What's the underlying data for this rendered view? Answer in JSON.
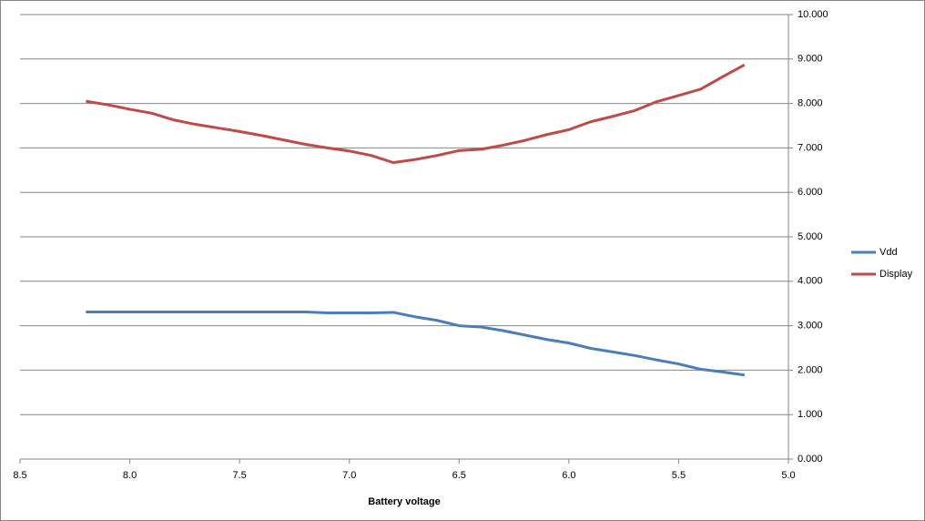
{
  "chart_data": {
    "type": "line",
    "x_label": "Battery voltage",
    "x": [
      8.2,
      8.1,
      8.0,
      7.9,
      7.8,
      7.7,
      7.6,
      7.5,
      7.4,
      7.3,
      7.2,
      7.1,
      7.0,
      6.9,
      6.8,
      6.7,
      6.6,
      6.5,
      6.4,
      6.3,
      6.2,
      6.1,
      6.0,
      5.9,
      5.8,
      5.7,
      5.6,
      5.5,
      5.4,
      5.3,
      5.2
    ],
    "series": [
      {
        "name": "Vdd",
        "color": "#4a7ebb",
        "values": [
          3.31,
          3.31,
          3.31,
          3.31,
          3.31,
          3.31,
          3.31,
          3.31,
          3.31,
          3.31,
          3.31,
          3.29,
          3.29,
          3.29,
          3.3,
          3.2,
          3.12,
          3.0,
          2.97,
          2.89,
          2.79,
          2.69,
          2.61,
          2.49,
          2.41,
          2.33,
          2.23,
          2.14,
          2.02,
          1.96,
          1.89
        ]
      },
      {
        "name": "Display",
        "color": "#be4b48",
        "values": [
          8.05,
          7.97,
          7.87,
          7.78,
          7.63,
          7.53,
          7.45,
          7.37,
          7.28,
          7.18,
          7.08,
          7.0,
          6.93,
          6.83,
          6.67,
          6.74,
          6.83,
          6.94,
          6.97,
          7.06,
          7.17,
          7.3,
          7.41,
          7.59,
          7.71,
          7.84,
          8.04,
          8.18,
          8.32,
          8.6,
          8.87
        ]
      }
    ],
    "xlim": [
      8.5,
      5.0
    ],
    "xticks": [
      8.5,
      {
        "value": 8,
        "label": "8.0"
      },
      7.5,
      {
        "value": 7,
        "label": "7.0"
      },
      6.5,
      {
        "value": 6,
        "label": "6.0"
      },
      5.5,
      {
        "value": 5,
        "label": "5.0"
      }
    ],
    "ylim": [
      0,
      10
    ],
    "yticks": [
      {
        "value": 0,
        "label": "0.000"
      },
      {
        "value": 1,
        "label": "1.000"
      },
      {
        "value": 2,
        "label": "2.000"
      },
      {
        "value": 3,
        "label": "3.000"
      },
      {
        "value": 4,
        "label": "4.000"
      },
      {
        "value": 5,
        "label": "5.000"
      },
      {
        "value": 6,
        "label": "6.000"
      },
      {
        "value": 7,
        "label": "7.000"
      },
      {
        "value": 8,
        "label": "8.000"
      },
      {
        "value": 9,
        "label": "9.000"
      },
      {
        "value": 10,
        "label": "10.000"
      }
    ],
    "y_axis_side": "right",
    "grid": true,
    "legend": "right"
  }
}
